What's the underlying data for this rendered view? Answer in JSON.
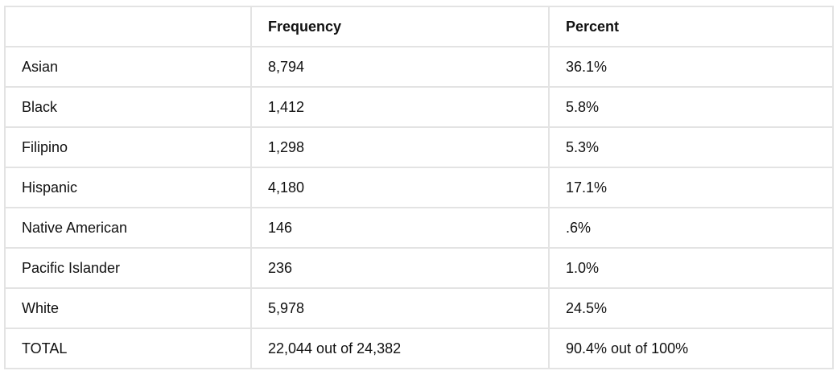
{
  "chart_data": {
    "type": "table",
    "columns": [
      "",
      "Frequency",
      "Percent"
    ],
    "rows": [
      {
        "label": "Asian",
        "frequency": "8,794",
        "percent": "36.1%"
      },
      {
        "label": "Black",
        "frequency": "1,412",
        "percent": "5.8%"
      },
      {
        "label": "Filipino",
        "frequency": "1,298",
        "percent": "5.3%"
      },
      {
        "label": "Hispanic",
        "frequency": "4,180",
        "percent": "17.1%"
      },
      {
        "label": "Native American",
        "frequency": "146",
        "percent": ".6%"
      },
      {
        "label": "Pacific Islander",
        "frequency": "236",
        "percent": "1.0%"
      },
      {
        "label": "White",
        "frequency": "5,978",
        "percent": "24.5%"
      },
      {
        "label": "TOTAL",
        "frequency": "22,044 out of 24,382",
        "percent": "90.4% out of 100%"
      }
    ]
  }
}
